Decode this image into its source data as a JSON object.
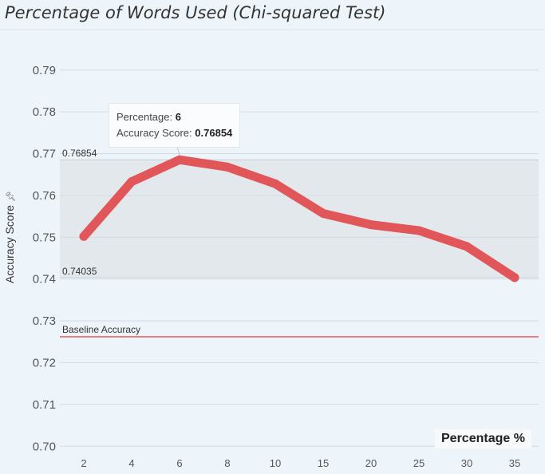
{
  "chart_data": {
    "type": "line",
    "title": "Percentage of Words Used (Chi-squared Test)",
    "xlabel": "Percentage %",
    "ylabel": "Accuracy Score",
    "categories": [
      "2",
      "4",
      "6",
      "8",
      "10",
      "15",
      "20",
      "25",
      "30",
      "35"
    ],
    "series": [
      {
        "values": [
          0.7502,
          0.7633,
          0.76854,
          0.7668,
          0.7628,
          0.7557,
          0.753,
          0.7516,
          0.7478,
          0.74035
        ]
      }
    ],
    "yticks": [
      "0.70",
      "0.71",
      "0.72",
      "0.73",
      "0.74",
      "0.75",
      "0.76",
      "0.77",
      "0.78",
      "0.79"
    ],
    "ylim": [
      0.697,
      0.7995
    ],
    "band": {
      "min": 0.74035,
      "max": 0.76854,
      "min_label": "0.74035",
      "max_label": "0.76854"
    },
    "reference_line": {
      "value": 0.7262,
      "label": "Baseline Accuracy"
    },
    "grid": true,
    "series_color": "#e15759",
    "baseline_color": "#e15759",
    "tooltip": {
      "percentage_label": "Percentage:",
      "percentage_value": "6",
      "accuracy_label": "Accuracy Score:",
      "accuracy_value": "0.76854"
    }
  }
}
